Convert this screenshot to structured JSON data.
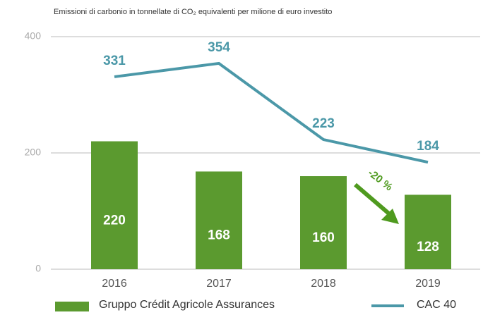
{
  "chart_data": {
    "type": "bar-line",
    "title": "Emissioni di carbonio in tonnellate di CO₂ equivalenti per milione di euro investito",
    "categories": [
      "2016",
      "2017",
      "2018",
      "2019"
    ],
    "series": [
      {
        "name": "Gruppo Crédit Agricole Assurances",
        "type": "bar",
        "color": "#5b9a2f",
        "values": [
          220,
          168,
          160,
          128
        ]
      },
      {
        "name": "CAC 40",
        "type": "line",
        "color": "#4b98a8",
        "values": [
          331,
          354,
          223,
          184
        ]
      }
    ],
    "ylim": [
      0,
      400
    ],
    "yticks": [
      0,
      200,
      400
    ],
    "grid": true,
    "annotation": {
      "text": "-20 %",
      "color": "#4f9a1f"
    }
  }
}
